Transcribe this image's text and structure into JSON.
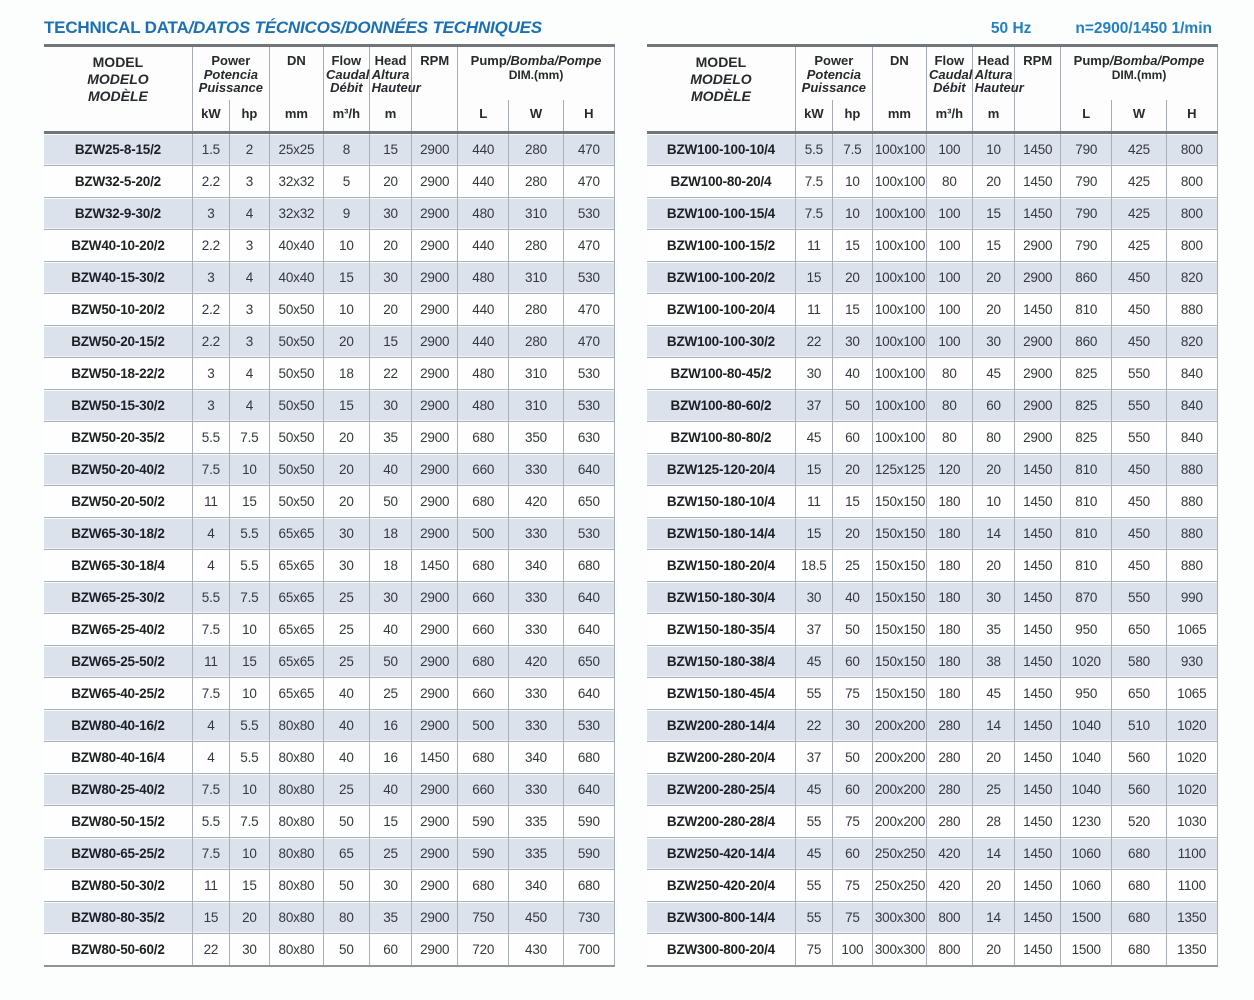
{
  "page": {
    "title_en": "TECHNICAL DATA",
    "title_rest": "/DATOS TÉCNICOS/DONNÉES TECHNIQUES",
    "frequency": "50 Hz",
    "speed": "n=2900/1450 1/min"
  },
  "colors": {
    "accent_blue": "#1d6fb4",
    "row_band": "#dbe2ec",
    "grid_line": "#a9b0b8",
    "rule_dark": "#70767c"
  },
  "header": {
    "model_lines": [
      "MODEL",
      "MODELO",
      "MODÈLE"
    ],
    "power_lines": [
      "Power",
      "Potencia",
      "Puissance"
    ],
    "dn_label": "DN",
    "flow_lines": [
      "Flow",
      "Caudal",
      "Débit"
    ],
    "head_lines": [
      "Head",
      "Altura",
      "Hauteur"
    ],
    "rpm_label": "RPM",
    "dim_line1_en": "Pump",
    "dim_line1_rest": "/Bomba/Pompe",
    "dim_line2": "DIM.(mm)",
    "units": {
      "kw": "kW",
      "hp": "hp",
      "dn": "mm",
      "flow": "m³/h",
      "head": "m",
      "l": "L",
      "w": "W",
      "h": "H"
    }
  },
  "left_rows": [
    [
      "BZW25-8-15/2",
      "1.5",
      "2",
      "25x25",
      "8",
      "15",
      "2900",
      "440",
      "280",
      "470"
    ],
    [
      "BZW32-5-20/2",
      "2.2",
      "3",
      "32x32",
      "5",
      "20",
      "2900",
      "440",
      "280",
      "470"
    ],
    [
      "BZW32-9-30/2",
      "3",
      "4",
      "32x32",
      "9",
      "30",
      "2900",
      "480",
      "310",
      "530"
    ],
    [
      "BZW40-10-20/2",
      "2.2",
      "3",
      "40x40",
      "10",
      "20",
      "2900",
      "440",
      "280",
      "470"
    ],
    [
      "BZW40-15-30/2",
      "3",
      "4",
      "40x40",
      "15",
      "30",
      "2900",
      "480",
      "310",
      "530"
    ],
    [
      "BZW50-10-20/2",
      "2.2",
      "3",
      "50x50",
      "10",
      "20",
      "2900",
      "440",
      "280",
      "470"
    ],
    [
      "BZW50-20-15/2",
      "2.2",
      "3",
      "50x50",
      "20",
      "15",
      "2900",
      "440",
      "280",
      "470"
    ],
    [
      "BZW50-18-22/2",
      "3",
      "4",
      "50x50",
      "18",
      "22",
      "2900",
      "480",
      "310",
      "530"
    ],
    [
      "BZW50-15-30/2",
      "3",
      "4",
      "50x50",
      "15",
      "30",
      "2900",
      "480",
      "310",
      "530"
    ],
    [
      "BZW50-20-35/2",
      "5.5",
      "7.5",
      "50x50",
      "20",
      "35",
      "2900",
      "680",
      "350",
      "630"
    ],
    [
      "BZW50-20-40/2",
      "7.5",
      "10",
      "50x50",
      "20",
      "40",
      "2900",
      "660",
      "330",
      "640"
    ],
    [
      "BZW50-20-50/2",
      "11",
      "15",
      "50x50",
      "20",
      "50",
      "2900",
      "680",
      "420",
      "650"
    ],
    [
      "BZW65-30-18/2",
      "4",
      "5.5",
      "65x65",
      "30",
      "18",
      "2900",
      "500",
      "330",
      "530"
    ],
    [
      "BZW65-30-18/4",
      "4",
      "5.5",
      "65x65",
      "30",
      "18",
      "1450",
      "680",
      "340",
      "680"
    ],
    [
      "BZW65-25-30/2",
      "5.5",
      "7.5",
      "65x65",
      "25",
      "30",
      "2900",
      "660",
      "330",
      "640"
    ],
    [
      "BZW65-25-40/2",
      "7.5",
      "10",
      "65x65",
      "25",
      "40",
      "2900",
      "660",
      "330",
      "640"
    ],
    [
      "BZW65-25-50/2",
      "11",
      "15",
      "65x65",
      "25",
      "50",
      "2900",
      "680",
      "420",
      "650"
    ],
    [
      "BZW65-40-25/2",
      "7.5",
      "10",
      "65x65",
      "40",
      "25",
      "2900",
      "660",
      "330",
      "640"
    ],
    [
      "BZW80-40-16/2",
      "4",
      "5.5",
      "80x80",
      "40",
      "16",
      "2900",
      "500",
      "330",
      "530"
    ],
    [
      "BZW80-40-16/4",
      "4",
      "5.5",
      "80x80",
      "40",
      "16",
      "1450",
      "680",
      "340",
      "680"
    ],
    [
      "BZW80-25-40/2",
      "7.5",
      "10",
      "80x80",
      "25",
      "40",
      "2900",
      "660",
      "330",
      "640"
    ],
    [
      "BZW80-50-15/2",
      "5.5",
      "7.5",
      "80x80",
      "50",
      "15",
      "2900",
      "590",
      "335",
      "590"
    ],
    [
      "BZW80-65-25/2",
      "7.5",
      "10",
      "80x80",
      "65",
      "25",
      "2900",
      "590",
      "335",
      "590"
    ],
    [
      "BZW80-50-30/2",
      "11",
      "15",
      "80x80",
      "50",
      "30",
      "2900",
      "680",
      "340",
      "680"
    ],
    [
      "BZW80-80-35/2",
      "15",
      "20",
      "80x80",
      "80",
      "35",
      "2900",
      "750",
      "450",
      "730"
    ],
    [
      "BZW80-50-60/2",
      "22",
      "30",
      "80x80",
      "50",
      "60",
      "2900",
      "720",
      "430",
      "700"
    ]
  ],
  "right_rows": [
    [
      "BZW100-100-10/4",
      "5.5",
      "7.5",
      "100x100",
      "100",
      "10",
      "1450",
      "790",
      "425",
      "800"
    ],
    [
      "BZW100-80-20/4",
      "7.5",
      "10",
      "100x100",
      "80",
      "20",
      "1450",
      "790",
      "425",
      "800"
    ],
    [
      "BZW100-100-15/4",
      "7.5",
      "10",
      "100x100",
      "100",
      "15",
      "1450",
      "790",
      "425",
      "800"
    ],
    [
      "BZW100-100-15/2",
      "11",
      "15",
      "100x100",
      "100",
      "15",
      "2900",
      "790",
      "425",
      "800"
    ],
    [
      "BZW100-100-20/2",
      "15",
      "20",
      "100x100",
      "100",
      "20",
      "2900",
      "860",
      "450",
      "820"
    ],
    [
      "BZW100-100-20/4",
      "11",
      "15",
      "100x100",
      "100",
      "20",
      "1450",
      "810",
      "450",
      "880"
    ],
    [
      "BZW100-100-30/2",
      "22",
      "30",
      "100x100",
      "100",
      "30",
      "2900",
      "860",
      "450",
      "820"
    ],
    [
      "BZW100-80-45/2",
      "30",
      "40",
      "100x100",
      "80",
      "45",
      "2900",
      "825",
      "550",
      "840"
    ],
    [
      "BZW100-80-60/2",
      "37",
      "50",
      "100x100",
      "80",
      "60",
      "2900",
      "825",
      "550",
      "840"
    ],
    [
      "BZW100-80-80/2",
      "45",
      "60",
      "100x100",
      "80",
      "80",
      "2900",
      "825",
      "550",
      "840"
    ],
    [
      "BZW125-120-20/4",
      "15",
      "20",
      "125x125",
      "120",
      "20",
      "1450",
      "810",
      "450",
      "880"
    ],
    [
      "BZW150-180-10/4",
      "11",
      "15",
      "150x150",
      "180",
      "10",
      "1450",
      "810",
      "450",
      "880"
    ],
    [
      "BZW150-180-14/4",
      "15",
      "20",
      "150x150",
      "180",
      "14",
      "1450",
      "810",
      "450",
      "880"
    ],
    [
      "BZW150-180-20/4",
      "18.5",
      "25",
      "150x150",
      "180",
      "20",
      "1450",
      "810",
      "450",
      "880"
    ],
    [
      "BZW150-180-30/4",
      "30",
      "40",
      "150x150",
      "180",
      "30",
      "1450",
      "870",
      "550",
      "990"
    ],
    [
      "BZW150-180-35/4",
      "37",
      "50",
      "150x150",
      "180",
      "35",
      "1450",
      "950",
      "650",
      "1065"
    ],
    [
      "BZW150-180-38/4",
      "45",
      "60",
      "150x150",
      "180",
      "38",
      "1450",
      "1020",
      "580",
      "930"
    ],
    [
      "BZW150-180-45/4",
      "55",
      "75",
      "150x150",
      "180",
      "45",
      "1450",
      "950",
      "650",
      "1065"
    ],
    [
      "BZW200-280-14/4",
      "22",
      "30",
      "200x200",
      "280",
      "14",
      "1450",
      "1040",
      "510",
      "1020"
    ],
    [
      "BZW200-280-20/4",
      "37",
      "50",
      "200x200",
      "280",
      "20",
      "1450",
      "1040",
      "560",
      "1020"
    ],
    [
      "BZW200-280-25/4",
      "45",
      "60",
      "200x200",
      "280",
      "25",
      "1450",
      "1040",
      "560",
      "1020"
    ],
    [
      "BZW200-280-28/4",
      "55",
      "75",
      "200x200",
      "280",
      "28",
      "1450",
      "1230",
      "520",
      "1030"
    ],
    [
      "BZW250-420-14/4",
      "45",
      "60",
      "250x250",
      "420",
      "14",
      "1450",
      "1060",
      "680",
      "1100"
    ],
    [
      "BZW250-420-20/4",
      "55",
      "75",
      "250x250",
      "420",
      "20",
      "1450",
      "1060",
      "680",
      "1100"
    ],
    [
      "BZW300-800-14/4",
      "55",
      "75",
      "300x300",
      "800",
      "14",
      "1450",
      "1500",
      "680",
      "1350"
    ],
    [
      "BZW300-800-20/4",
      "75",
      "100",
      "300x300",
      "800",
      "20",
      "1450",
      "1500",
      "680",
      "1350"
    ]
  ]
}
